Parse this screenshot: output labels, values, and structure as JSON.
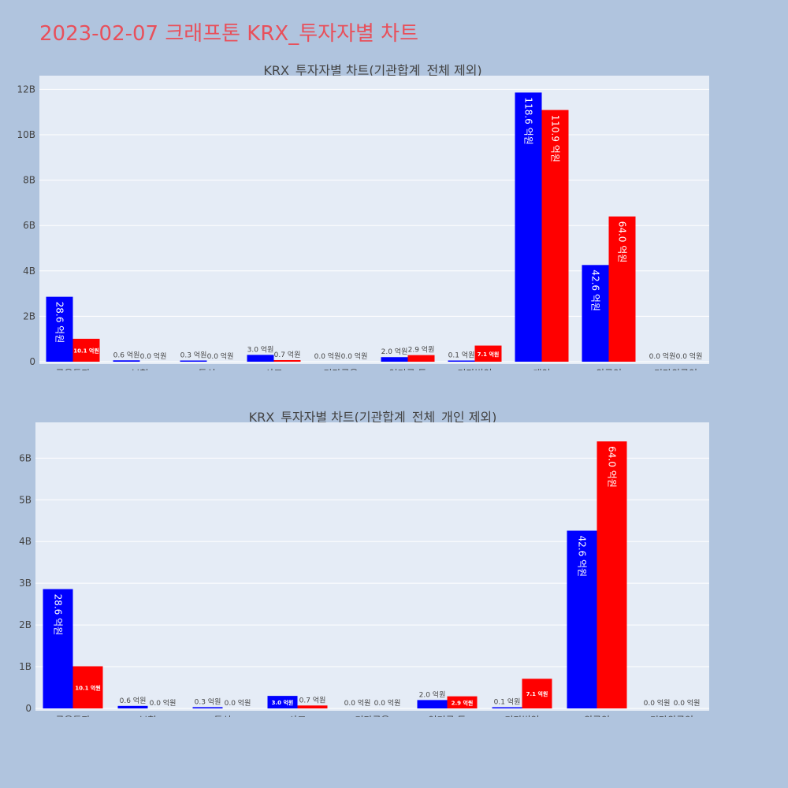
{
  "page": {
    "title": "2023-02-07 크래프톤 KRX_투자자별 차트"
  },
  "colors": {
    "buy": "#0000ff",
    "sell": "#ff0000",
    "background": "#b0c4de",
    "plot_bg": "#e5ecf6",
    "title": "#e8505b"
  },
  "chart_data": [
    {
      "type": "bar",
      "title": "KRX_투자자별 차트(기관합계_전체 제외)",
      "categories": [
        "금융투자",
        "보험",
        "투신",
        "사모",
        "기타금융",
        "연기금 등",
        "기타법인",
        "개인",
        "외국인",
        "기타외국인"
      ],
      "series": [
        {
          "color": "#0000ff",
          "values": [
            2.86,
            0.06,
            0.03,
            0.3,
            0.0,
            0.2,
            0.01,
            11.86,
            4.26,
            0.0
          ],
          "labels": [
            "28.6 억원",
            "0.6 억원",
            "0.3 억원",
            "3.0 억원",
            "0.0 억원",
            "2.0 억원",
            "0.1 억원",
            "118.6 억원",
            "42.6 억원",
            "0.0 억원"
          ]
        },
        {
          "color": "#ff0000",
          "values": [
            1.01,
            0.0,
            0.0,
            0.07,
            0.0,
            0.29,
            0.71,
            11.09,
            6.4,
            0.0
          ],
          "labels": [
            "10.1 억원",
            "0.0 억원",
            "0.0 억원",
            "0.7 억원",
            "0.0 억원",
            "2.9 억원",
            "7.1 억원",
            "110.9 억원",
            "64.0 억원",
            "0.0 억원"
          ]
        }
      ],
      "ylim": [
        0,
        12.5
      ],
      "yticks": [
        0,
        2,
        4,
        6,
        8,
        10,
        12
      ],
      "ytick_labels": [
        "0",
        "2B",
        "4B",
        "6B",
        "8B",
        "10B",
        "12B"
      ],
      "grid": true
    },
    {
      "type": "bar",
      "title": "KRX_투자자별 차트(기관합계_전체_개인 제외)",
      "categories": [
        "금융투자",
        "보험",
        "투신",
        "사모",
        "기타금융",
        "연기금 등",
        "기타법인",
        "외국인",
        "기타외국인"
      ],
      "series": [
        {
          "color": "#0000ff",
          "values": [
            2.86,
            0.06,
            0.03,
            0.3,
            0.0,
            0.2,
            0.01,
            4.26,
            0.0
          ],
          "labels": [
            "28.6 억원",
            "0.6 억원",
            "0.3 억원",
            "3.0 억원",
            "0.0 억원",
            "2.0 억원",
            "0.1 억원",
            "42.6 억원",
            "0.0 억원"
          ]
        },
        {
          "color": "#ff0000",
          "values": [
            1.01,
            0.0,
            0.0,
            0.07,
            0.0,
            0.29,
            0.71,
            6.4,
            0.0
          ],
          "labels": [
            "10.1 억원",
            "0.0 억원",
            "0.0 억원",
            "0.7 억원",
            "0.0 억원",
            "2.9 억원",
            "7.1 억원",
            "64.0 억원",
            "0.0 억원"
          ]
        }
      ],
      "ylim": [
        0,
        6.8
      ],
      "yticks": [
        0,
        1,
        2,
        3,
        4,
        5,
        6
      ],
      "ytick_labels": [
        "0",
        "1B",
        "2B",
        "3B",
        "4B",
        "5B",
        "6B"
      ],
      "grid": true
    }
  ]
}
